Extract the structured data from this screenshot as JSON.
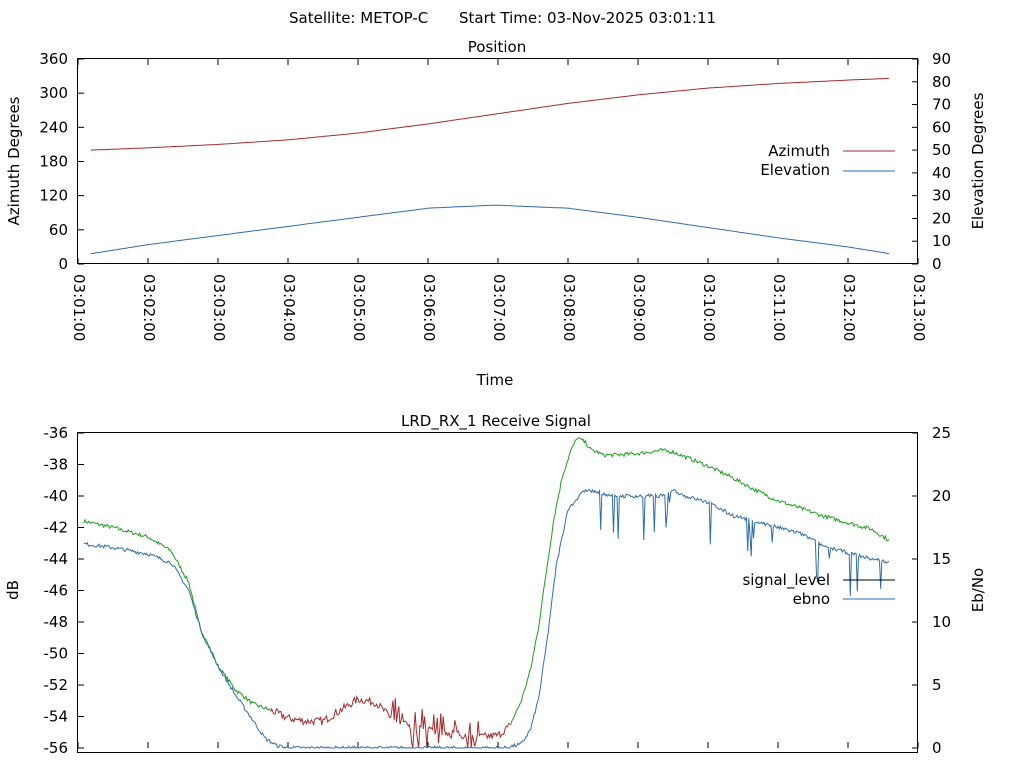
{
  "header": {
    "satellite": "Satellite: METOP-C",
    "start_time": "Start Time: 03-Nov-2025 03:01:11"
  },
  "chart_data": [
    {
      "type": "line",
      "title": "Position",
      "xlabel": "Time",
      "ylabel": "Azimuth Degrees",
      "y2label": "Elevation Degrees",
      "xlim": [
        0,
        720
      ],
      "ylim": [
        0,
        360
      ],
      "y2lim": [
        0,
        90
      ],
      "yticks": [
        "0",
        "60",
        "120",
        "180",
        "240",
        "300",
        "360"
      ],
      "y2ticks": [
        "0",
        "10",
        "20",
        "30",
        "40",
        "50",
        "60",
        "70",
        "80",
        "90"
      ],
      "xticks": [
        "03:01:00",
        "03:02:00",
        "03:03:00",
        "03:04:00",
        "03:05:00",
        "03:06:00",
        "03:07:00",
        "03:08:00",
        "03:09:00",
        "03:10:00",
        "03:11:00",
        "03:12:00",
        "03:13:00"
      ],
      "legend_position": "right",
      "series": [
        {
          "name": "Azimuth",
          "axis": "left",
          "color": "#a52a2a",
          "x": [
            11,
            60,
            120,
            180,
            240,
            300,
            360,
            420,
            480,
            540,
            600,
            660,
            696
          ],
          "y": [
            200,
            204,
            210,
            218,
            230,
            246,
            264,
            282,
            297,
            309,
            317,
            323,
            326
          ]
        },
        {
          "name": "Elevation",
          "axis": "right",
          "color": "#2f6eab",
          "x": [
            11,
            60,
            120,
            180,
            240,
            300,
            350,
            360,
            420,
            480,
            540,
            600,
            660,
            696
          ],
          "y": [
            4.5,
            8.5,
            12.5,
            16.5,
            20.5,
            24.5,
            25.7,
            25.8,
            24.5,
            20.5,
            16,
            11.5,
            7.5,
            4.5
          ]
        }
      ]
    },
    {
      "type": "line",
      "title": "LRD_RX_1 Receive Signal",
      "xlabel": "",
      "ylabel": "dB",
      "y2label": "Eb/No",
      "xlim": [
        0,
        720
      ],
      "ylim": [
        -56,
        -36
      ],
      "y2lim": [
        0,
        25
      ],
      "yticks": [
        "-56",
        "-54",
        "-52",
        "-50",
        "-48",
        "-46",
        "-44",
        "-42",
        "-40",
        "-38",
        "-36"
      ],
      "y2ticks": [
        "0",
        "5",
        "10",
        "15",
        "20",
        "25"
      ],
      "legend_position": "right",
      "series": [
        {
          "name": "signal_level",
          "axis": "left",
          "color": "#000000",
          "segments": [
            {
              "color": "#1aa01a",
              "x": [
                5,
                30,
                60,
                80,
                95,
                105,
                120,
                135,
                150,
                165
              ],
              "y": [
                -41.6,
                -42.0,
                -42.6,
                -43.5,
                -45.5,
                -48.5,
                -50.8,
                -52.3,
                -53.2,
                -53.6
              ]
            },
            {
              "color": "#a52a2a",
              "x": [
                165,
                180,
                195,
                210,
                225,
                240,
                255,
                270,
                285,
                300,
                315,
                330,
                345,
                360,
                370
              ],
              "y": [
                -53.6,
                -54.1,
                -54.3,
                -54.3,
                -53.6,
                -52.9,
                -53.1,
                -54.2,
                -54.6,
                -54.9,
                -55.0,
                -55.2,
                -55.3,
                -55.2,
                -54.6
              ]
            },
            {
              "color": "#1aa01a",
              "x": [
                370,
                380,
                388,
                395,
                402,
                408,
                415,
                422,
                428,
                435,
                440,
                445,
                450,
                460,
                480,
                500,
                510,
                520,
                540,
                560,
                580,
                600,
                620,
                640,
                660,
                680,
                695
              ],
              "y": [
                -54.6,
                -53.0,
                -51.0,
                -48.2,
                -44.5,
                -41.4,
                -38.8,
                -37.2,
                -36.3,
                -36.6,
                -37.1,
                -37.2,
                -37.4,
                -37.4,
                -37.3,
                -37.1,
                -37.2,
                -37.5,
                -38.1,
                -38.8,
                -39.6,
                -40.3,
                -40.8,
                -41.3,
                -41.7,
                -42.1,
                -42.8
              ]
            }
          ]
        },
        {
          "name": "ebno",
          "axis": "right",
          "color": "#2f6eab",
          "x": [
            5,
            30,
            60,
            80,
            95,
            105,
            120,
            135,
            150,
            160,
            170,
            180,
            200,
            220,
            240,
            260,
            290,
            320,
            350,
            365,
            380,
            388,
            395,
            402,
            410,
            420,
            435,
            460,
            480,
            500,
            510,
            520,
            540,
            560,
            580,
            600,
            620,
            640,
            660,
            680,
            695
          ],
          "y": [
            16.2,
            15.9,
            15.4,
            14.7,
            12.5,
            9.5,
            6.5,
            4.2,
            2.2,
            0.8,
            0.2,
            0,
            0,
            0,
            0,
            0,
            0,
            0,
            0,
            0,
            0.3,
            1.5,
            4.0,
            8.5,
            14.5,
            19.0,
            20.5,
            20.0,
            20.0,
            20.0,
            20.5,
            20.0,
            19.5,
            18.5,
            18.0,
            17.5,
            17.0,
            16.0,
            15.5,
            15.0,
            14.8
          ]
        }
      ]
    }
  ]
}
